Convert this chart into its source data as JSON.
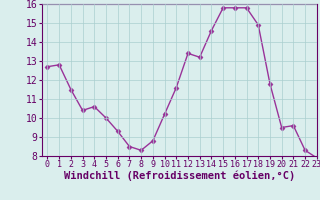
{
  "x": [
    0,
    1,
    2,
    3,
    4,
    5,
    6,
    7,
    8,
    9,
    10,
    11,
    12,
    13,
    14,
    15,
    16,
    17,
    18,
    19,
    20,
    21,
    22,
    23
  ],
  "y": [
    12.7,
    12.8,
    11.5,
    10.4,
    10.6,
    10.0,
    9.3,
    8.5,
    8.3,
    8.8,
    10.2,
    11.6,
    13.4,
    13.2,
    14.6,
    15.8,
    15.8,
    15.8,
    14.9,
    11.8,
    9.5,
    9.6,
    8.3,
    7.9
  ],
  "line_color": "#993399",
  "marker": "D",
  "marker_size": 2.5,
  "linewidth": 1.0,
  "xlabel": "Windchill (Refroidissement éolien,°C)",
  "xlabel_fontsize": 7.5,
  "ylim": [
    8,
    16
  ],
  "xlim": [
    -0.5,
    23
  ],
  "yticks": [
    8,
    9,
    10,
    11,
    12,
    13,
    14,
    15,
    16
  ],
  "xticks": [
    0,
    1,
    2,
    3,
    4,
    5,
    6,
    7,
    8,
    9,
    10,
    11,
    12,
    13,
    14,
    15,
    16,
    17,
    18,
    19,
    20,
    21,
    22,
    23
  ],
  "grid_color": "#aacfcf",
  "background_color": "#daeeed",
  "tick_fontsize": 6,
  "ytick_fontsize": 7,
  "tick_color": "#660066",
  "spine_color": "#660066",
  "xlabel_color": "#660066"
}
